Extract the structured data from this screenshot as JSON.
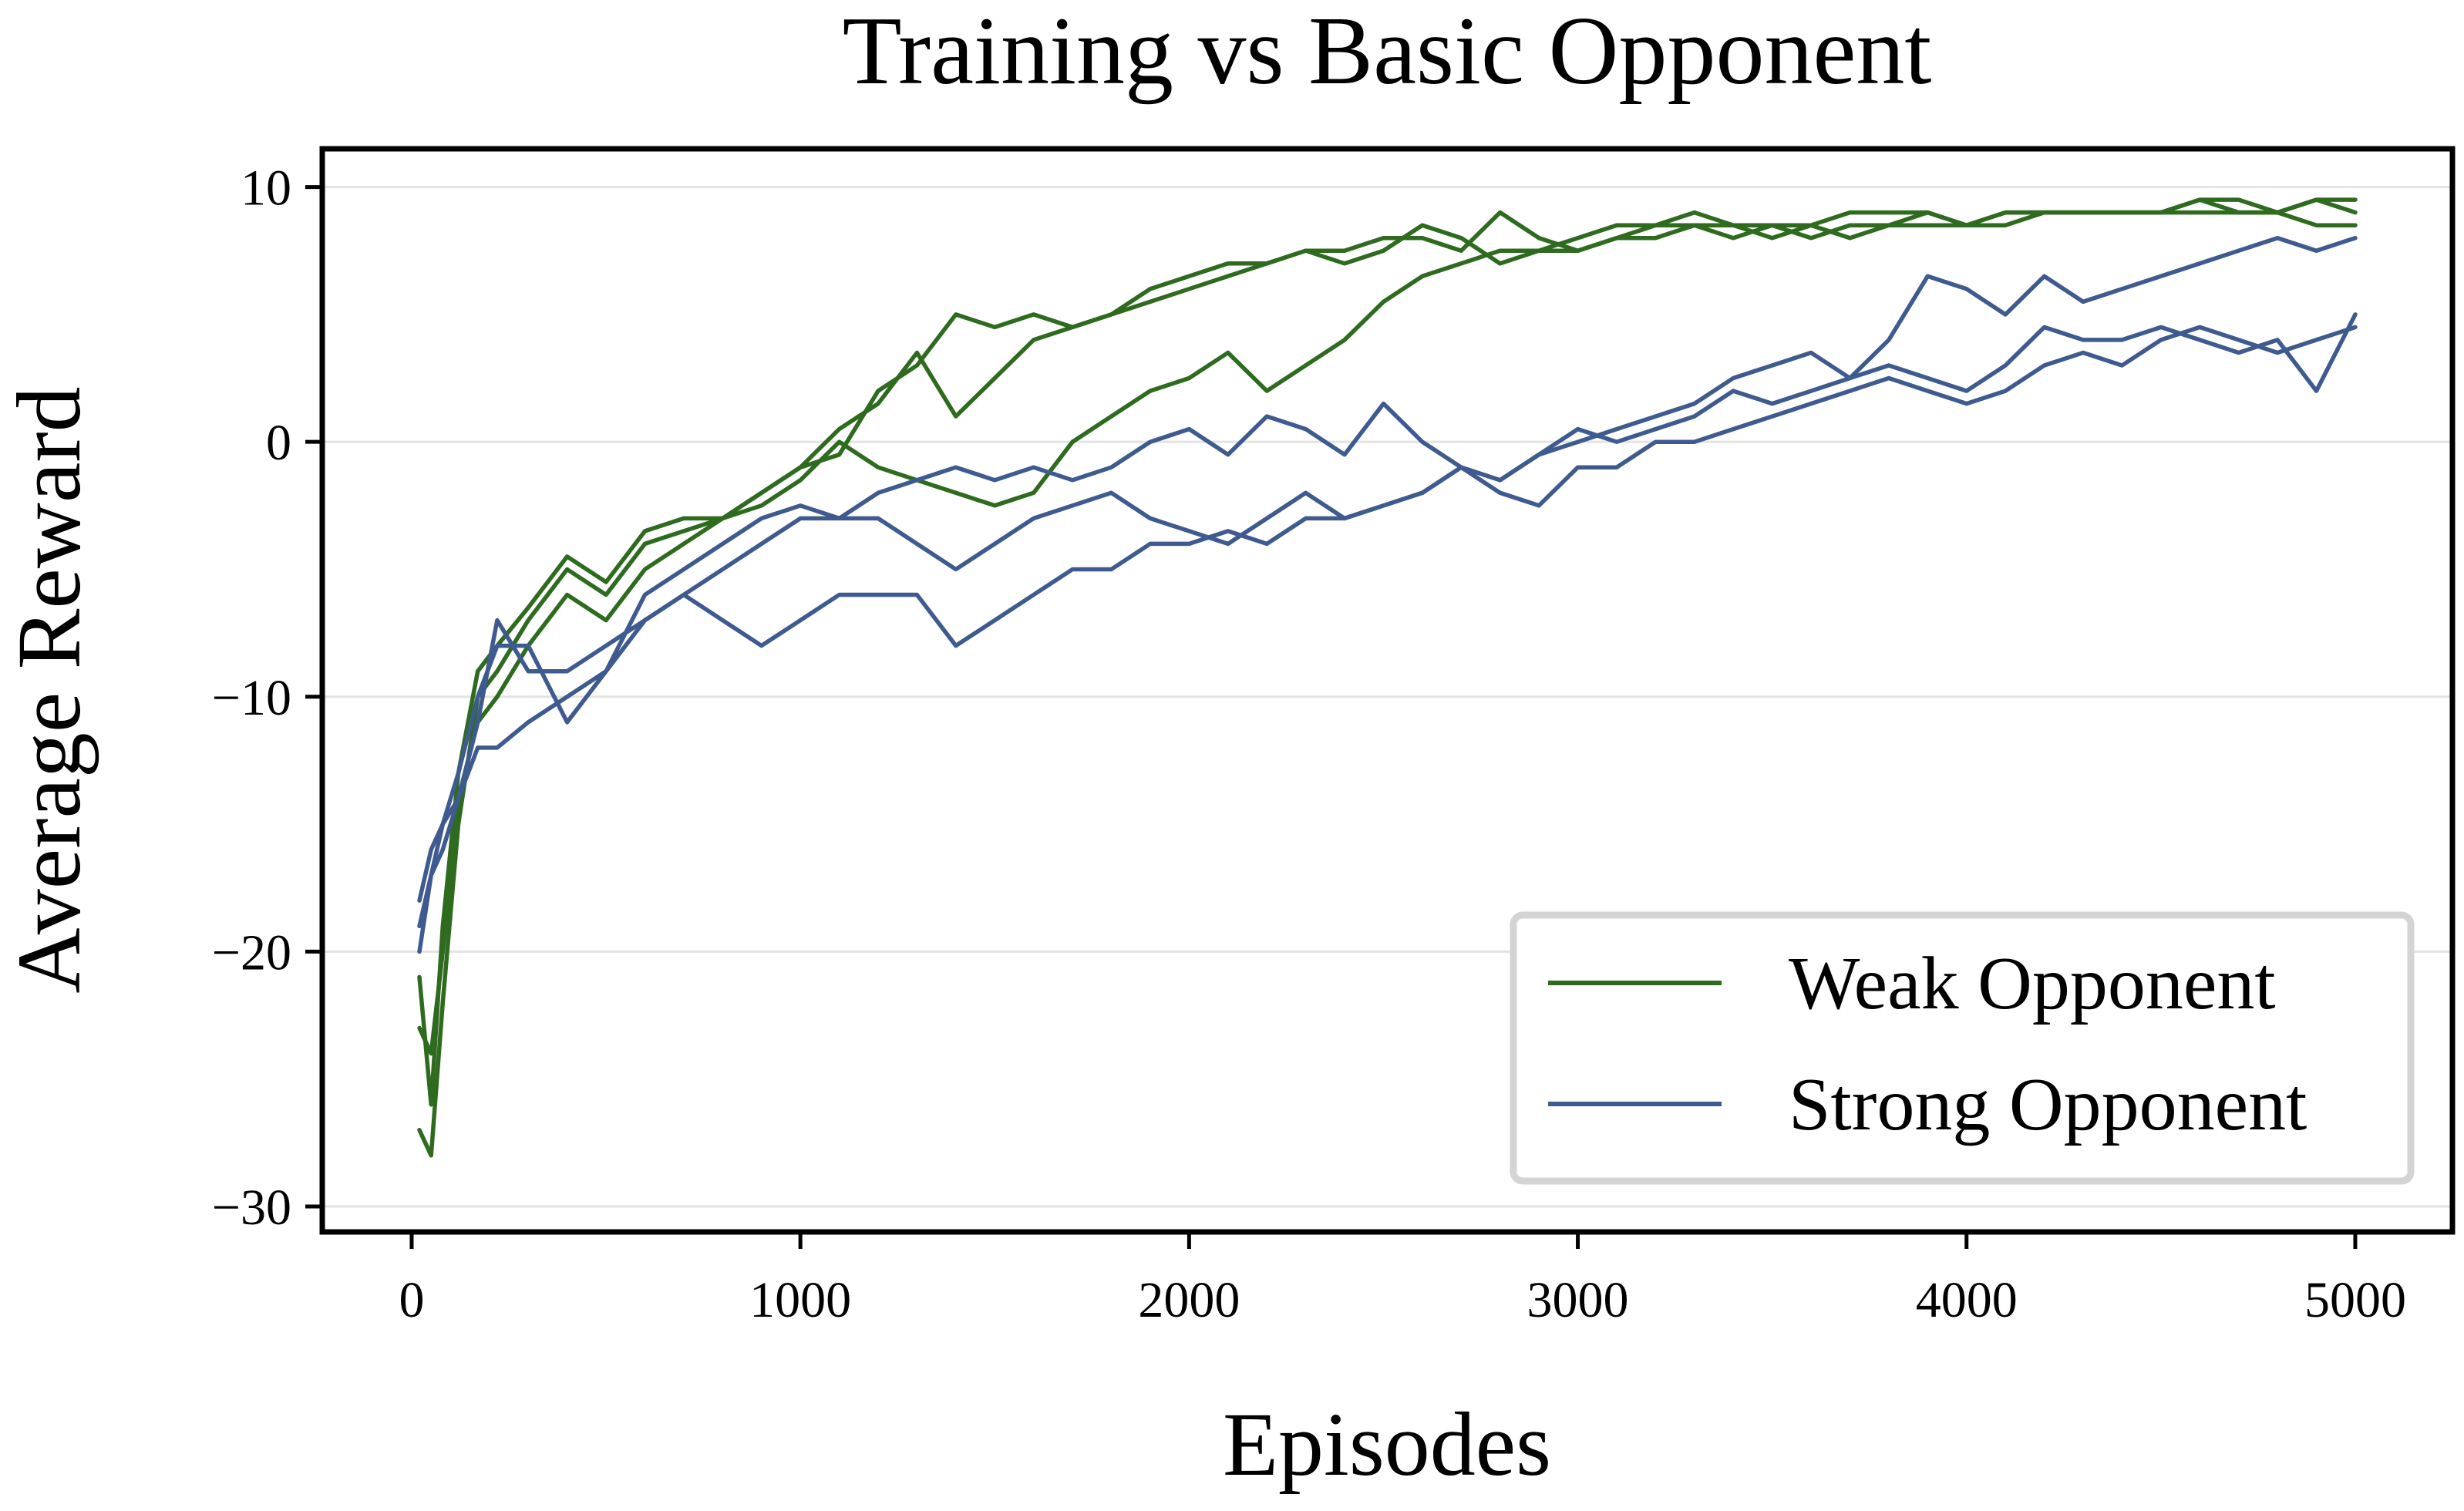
{
  "chart_data": {
    "type": "line",
    "title": "Training vs Basic Opponent",
    "xlabel": "Episodes",
    "ylabel": "Average Reward",
    "xlim": [
      -230,
      5250
    ],
    "ylim": [
      -31,
      11.5
    ],
    "xticks": [
      0,
      1000,
      2000,
      3000,
      4000,
      5000
    ],
    "xtick_labels": [
      "0",
      "1000",
      "2000",
      "3000",
      "4000",
      "5000"
    ],
    "yticks": [
      10,
      0,
      -10,
      -20,
      -30
    ],
    "ytick_labels": [
      "10",
      "0",
      "−10",
      "−20",
      "−30"
    ],
    "grid": "horizontal",
    "legend_position": "lower-right",
    "legend": [
      {
        "label": "Weak Opponent",
        "color": "#2e6b1f"
      },
      {
        "label": "Strong Opponent",
        "color": "#3f5a8f"
      }
    ],
    "series": [
      {
        "group": "Weak Opponent",
        "color": "#2e6b1f",
        "x": [
          20,
          50,
          80,
          120,
          170,
          220,
          300,
          400,
          500,
          600,
          700,
          800,
          900,
          1000,
          1100,
          1200,
          1300,
          1400,
          1500,
          1600,
          1700,
          1800,
          1900,
          2000,
          2100,
          2200,
          2300,
          2400,
          2500,
          2600,
          2700,
          2800,
          2900,
          3000,
          3100,
          3200,
          3300,
          3400,
          3500,
          3600,
          3700,
          3800,
          3900,
          4000,
          4100,
          4200,
          4300,
          4400,
          4500,
          4600,
          4700,
          4800,
          4900,
          5000
        ],
        "y": [
          -27,
          -28,
          -22,
          -15,
          -10,
          -9,
          -7,
          -5,
          -6,
          -4,
          -3.5,
          -3,
          -2.5,
          -1.5,
          0,
          -1,
          -1.5,
          -2,
          -2.5,
          -2,
          0,
          1,
          2,
          2.5,
          3.5,
          2,
          3,
          4,
          5.5,
          6.5,
          7,
          7.5,
          7.5,
          7.5,
          8,
          8,
          8.5,
          8.5,
          8.5,
          8,
          8.5,
          8.5,
          8.5,
          8.5,
          9,
          9,
          9,
          9,
          9,
          9,
          9,
          9,
          8.5,
          8.5
        ]
      },
      {
        "group": "Weak Opponent",
        "color": "#2e6b1f",
        "x": [
          20,
          50,
          80,
          120,
          170,
          220,
          300,
          400,
          500,
          600,
          700,
          800,
          900,
          1000,
          1100,
          1200,
          1300,
          1400,
          1500,
          1600,
          1700,
          1800,
          1900,
          2000,
          2100,
          2200,
          2300,
          2400,
          2500,
          2600,
          2700,
          2800,
          2900,
          3000,
          3100,
          3200,
          3300,
          3400,
          3500,
          3600,
          3700,
          3800,
          3900,
          4000,
          4100,
          4200,
          4300,
          4400,
          4500,
          4600,
          4700,
          4800,
          4900,
          5000
        ],
        "y": [
          -23,
          -24,
          -20,
          -14,
          -11,
          -10,
          -8,
          -6,
          -7,
          -5,
          -4,
          -3,
          -2,
          -1,
          0.5,
          1.5,
          3.5,
          1,
          2.5,
          4,
          4.5,
          5,
          5.5,
          6,
          6.5,
          7,
          7.5,
          7.5,
          8,
          8,
          7.5,
          9,
          8,
          7.5,
          8,
          8.5,
          8.5,
          8,
          8.5,
          8.5,
          9,
          9,
          9,
          8.5,
          9,
          9,
          9,
          9,
          9,
          9.5,
          9,
          9,
          9.5,
          9.5
        ]
      },
      {
        "group": "Weak Opponent",
        "color": "#2e6b1f",
        "x": [
          20,
          50,
          80,
          120,
          170,
          220,
          300,
          400,
          500,
          600,
          700,
          800,
          900,
          1000,
          1100,
          1200,
          1300,
          1400,
          1500,
          1600,
          1700,
          1800,
          1900,
          2000,
          2100,
          2200,
          2300,
          2400,
          2500,
          2600,
          2700,
          2800,
          2900,
          3000,
          3100,
          3200,
          3300,
          3400,
          3500,
          3600,
          3700,
          3800,
          3900,
          4000,
          4100,
          4200,
          4300,
          4400,
          4500,
          4600,
          4700,
          4800,
          4900,
          5000
        ],
        "y": [
          -21,
          -26,
          -19,
          -13,
          -9,
          -8,
          -6.5,
          -4.5,
          -5.5,
          -3.5,
          -3,
          -3,
          -2,
          -1,
          -0.5,
          2,
          3,
          5,
          4.5,
          5,
          4.5,
          5,
          6,
          6.5,
          7,
          7,
          7.5,
          7,
          7.5,
          8.5,
          8,
          7,
          7.5,
          8,
          8.5,
          8.5,
          9,
          8.5,
          8,
          8.5,
          8,
          8.5,
          9,
          8.5,
          8.5,
          9,
          9,
          9,
          9,
          9.5,
          9.5,
          9,
          9.5,
          9
        ]
      },
      {
        "group": "Strong Opponent",
        "color": "#3f5a8f",
        "x": [
          20,
          50,
          80,
          120,
          170,
          220,
          300,
          400,
          500,
          600,
          700,
          800,
          900,
          1000,
          1100,
          1200,
          1300,
          1400,
          1500,
          1600,
          1700,
          1800,
          1900,
          2000,
          2100,
          2200,
          2300,
          2400,
          2500,
          2600,
          2700,
          2800,
          2900,
          3000,
          3100,
          3200,
          3300,
          3400,
          3500,
          3600,
          3700,
          3800,
          3900,
          4000,
          4100,
          4200,
          4300,
          4400,
          4500,
          4600,
          4700,
          4800,
          4900,
          5000
        ],
        "y": [
          -20,
          -17,
          -15,
          -14,
          -12,
          -12,
          -11,
          -10,
          -9,
          -7,
          -6,
          -5,
          -4,
          -3,
          -3,
          -2,
          -1.5,
          -1,
          -1.5,
          -1,
          -1.5,
          -1,
          0,
          0.5,
          -0.5,
          1,
          0.5,
          -0.5,
          1.5,
          0,
          -1,
          -1.5,
          -0.5,
          0,
          0.5,
          1,
          1.5,
          2.5,
          3,
          3.5,
          2.5,
          4,
          6.5,
          6,
          5,
          6.5,
          5.5,
          6,
          6.5,
          7,
          7.5,
          8,
          7.5,
          8
        ]
      },
      {
        "group": "Strong Opponent",
        "color": "#3f5a8f",
        "x": [
          20,
          50,
          80,
          120,
          170,
          220,
          300,
          400,
          500,
          600,
          700,
          800,
          900,
          1000,
          1100,
          1200,
          1300,
          1400,
          1500,
          1600,
          1700,
          1800,
          1900,
          2000,
          2100,
          2200,
          2300,
          2400,
          2500,
          2600,
          2700,
          2800,
          2900,
          3000,
          3100,
          3200,
          3300,
          3400,
          3500,
          3600,
          3700,
          3800,
          3900,
          4000,
          4100,
          4200,
          4300,
          4400,
          4500,
          4600,
          4700,
          4800,
          4900,
          5000
        ],
        "y": [
          -18,
          -16,
          -15,
          -13,
          -10,
          -8,
          -8,
          -11,
          -9,
          -6,
          -5,
          -4,
          -3,
          -2.5,
          -3,
          -3,
          -4,
          -5,
          -4,
          -3,
          -2.5,
          -2,
          -3,
          -3.5,
          -4,
          -3,
          -2,
          -3,
          -2.5,
          -2,
          -1,
          -1.5,
          -0.5,
          0.5,
          0,
          0.5,
          1,
          2,
          1.5,
          2,
          2.5,
          3,
          2.5,
          2,
          3,
          4.5,
          4,
          4,
          4.5,
          4,
          3.5,
          4,
          2,
          5
        ]
      },
      {
        "group": "Strong Opponent",
        "color": "#3f5a8f",
        "x": [
          20,
          50,
          80,
          120,
          170,
          220,
          300,
          400,
          500,
          600,
          700,
          800,
          900,
          1000,
          1100,
          1200,
          1300,
          1400,
          1500,
          1600,
          1700,
          1800,
          1900,
          2000,
          2100,
          2200,
          2300,
          2400,
          2500,
          2600,
          2700,
          2800,
          2900,
          3000,
          3100,
          3200,
          3300,
          3400,
          3500,
          3600,
          3700,
          3800,
          3900,
          4000,
          4100,
          4200,
          4300,
          4400,
          4500,
          4600,
          4700,
          4800,
          4900,
          5000
        ],
        "y": [
          -19,
          -17,
          -16,
          -14,
          -11,
          -7,
          -9,
          -9,
          -8,
          -7,
          -6,
          -7,
          -8,
          -7,
          -6,
          -6,
          -6,
          -8,
          -7,
          -6,
          -5,
          -5,
          -4,
          -4,
          -3.5,
          -4,
          -3,
          -3,
          -2.5,
          -2,
          -1,
          -2,
          -2.5,
          -1,
          -1,
          0,
          0,
          0.5,
          1,
          1.5,
          2,
          2.5,
          2,
          1.5,
          2,
          3,
          3.5,
          3,
          4,
          4.5,
          4,
          3.5,
          4,
          4.5
        ]
      }
    ]
  }
}
